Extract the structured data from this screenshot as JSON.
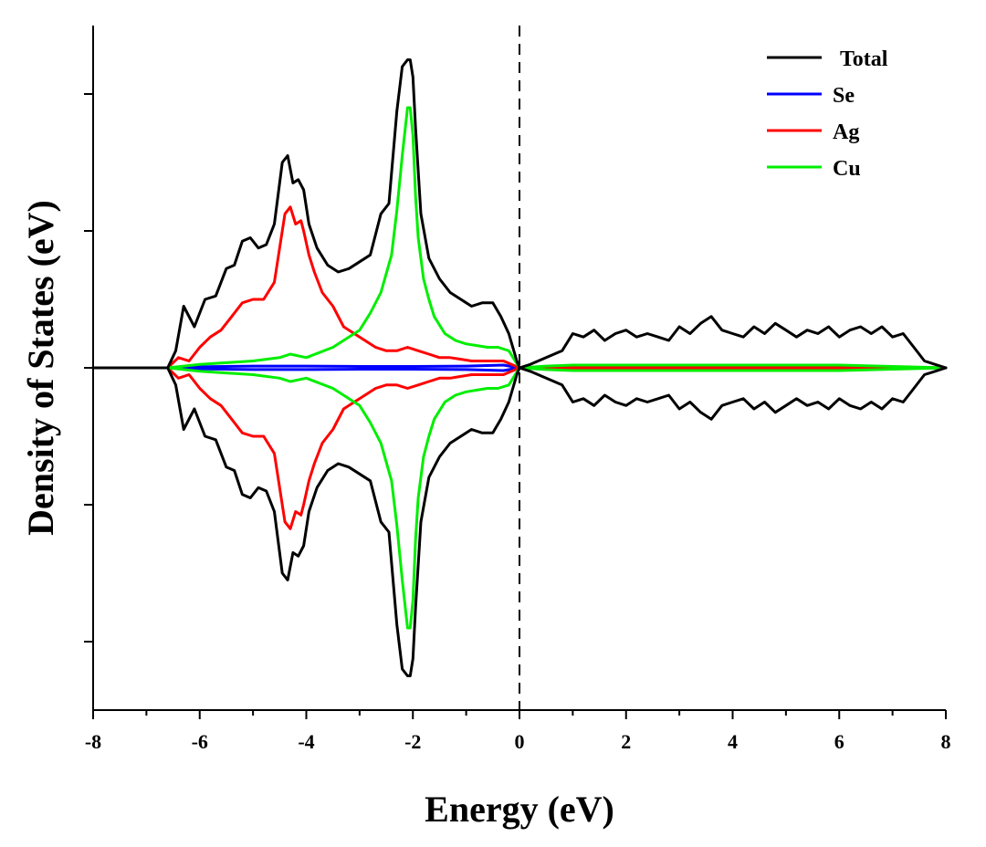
{
  "chart_data": {
    "type": "line",
    "title": "",
    "xlabel": "Energy (eV)",
    "ylabel": "Density of States (eV)",
    "xlim": [
      -8,
      8
    ],
    "ylim": [
      -1.0,
      1.0
    ],
    "x_ticks": [
      -8,
      -6,
      -4,
      -2,
      0,
      2,
      4,
      6,
      8
    ],
    "x_tick_labels": [
      "-8",
      "-6",
      "-4",
      "-2",
      "0",
      "2",
      "4",
      "6",
      "8"
    ],
    "y_ticks_major": [
      -0.8,
      -0.4,
      0.0,
      0.4,
      0.8
    ],
    "y_tick_labels_shown": false,
    "fermi_level": 0,
    "grid": false,
    "legend_position": "top-right",
    "series": [
      {
        "name": "Total",
        "color": "#000000",
        "spin_up": {
          "x": [
            -8,
            -6.6,
            -6.45,
            -6.3,
            -6.1,
            -5.9,
            -5.7,
            -5.5,
            -5.35,
            -5.2,
            -5.05,
            -4.9,
            -4.75,
            -4.6,
            -4.45,
            -4.35,
            -4.25,
            -4.15,
            -4.05,
            -3.95,
            -3.8,
            -3.6,
            -3.4,
            -3.2,
            -3.0,
            -2.8,
            -2.6,
            -2.45,
            -2.3,
            -2.2,
            -2.1,
            -2.05,
            -2.0,
            -1.95,
            -1.85,
            -1.7,
            -1.5,
            -1.3,
            -1.1,
            -0.9,
            -0.7,
            -0.5,
            -0.35,
            -0.2,
            -0.05,
            0.0,
            0.2,
            0.5,
            0.8,
            1.0,
            1.2,
            1.4,
            1.6,
            1.8,
            2.0,
            2.2,
            2.4,
            2.6,
            2.8,
            3.0,
            3.2,
            3.4,
            3.6,
            3.8,
            4.0,
            4.2,
            4.4,
            4.6,
            4.8,
            5.0,
            5.2,
            5.4,
            5.6,
            5.8,
            6.0,
            6.2,
            6.4,
            6.6,
            6.8,
            7.0,
            7.2,
            7.4,
            7.6,
            7.8,
            8.0
          ],
          "y": [
            0,
            0,
            0.05,
            0.18,
            0.12,
            0.2,
            0.21,
            0.29,
            0.3,
            0.37,
            0.38,
            0.35,
            0.36,
            0.42,
            0.6,
            0.62,
            0.54,
            0.55,
            0.52,
            0.42,
            0.35,
            0.3,
            0.28,
            0.29,
            0.31,
            0.33,
            0.45,
            0.48,
            0.75,
            0.88,
            0.9,
            0.9,
            0.85,
            0.7,
            0.45,
            0.32,
            0.26,
            0.22,
            0.2,
            0.18,
            0.19,
            0.19,
            0.15,
            0.1,
            0.02,
            0,
            0.01,
            0.03,
            0.05,
            0.1,
            0.09,
            0.11,
            0.08,
            0.1,
            0.11,
            0.09,
            0.1,
            0.09,
            0.08,
            0.12,
            0.1,
            0.13,
            0.15,
            0.11,
            0.1,
            0.09,
            0.12,
            0.1,
            0.13,
            0.11,
            0.09,
            0.11,
            0.1,
            0.12,
            0.09,
            0.11,
            0.12,
            0.1,
            0.12,
            0.09,
            0.1,
            0.06,
            0.02,
            0.01,
            0
          ],
          "note": "spin-down is the mirrored negative of spin-up"
        }
      },
      {
        "name": "Se",
        "color": "#0000ff",
        "spin_up": {
          "x": [
            -8,
            -6.6,
            -6.0,
            -5.0,
            -4.0,
            -3.0,
            -2.0,
            -1.0,
            -0.3,
            0.0,
            2.0,
            4.0,
            6.0,
            8.0
          ],
          "y": [
            0,
            0,
            0.003,
            0.005,
            0.005,
            0.004,
            0.004,
            0.005,
            0.008,
            0,
            0.002,
            0.002,
            0.002,
            0
          ]
        }
      },
      {
        "name": "Ag",
        "color": "#ff0000",
        "spin_up": {
          "x": [
            -8,
            -6.6,
            -6.4,
            -6.2,
            -6.0,
            -5.8,
            -5.6,
            -5.4,
            -5.2,
            -5.0,
            -4.8,
            -4.6,
            -4.5,
            -4.4,
            -4.3,
            -4.2,
            -4.1,
            -4.05,
            -3.95,
            -3.85,
            -3.7,
            -3.5,
            -3.3,
            -3.1,
            -2.9,
            -2.7,
            -2.5,
            -2.3,
            -2.1,
            -1.9,
            -1.7,
            -1.5,
            -1.3,
            -1.1,
            -0.9,
            -0.7,
            -0.5,
            -0.3,
            -0.15,
            0.0,
            0.5,
            1.0,
            2.0,
            4.0,
            6.0,
            7.5,
            8.0
          ],
          "y": [
            0,
            0,
            0.03,
            0.02,
            0.06,
            0.09,
            0.11,
            0.15,
            0.19,
            0.2,
            0.2,
            0.25,
            0.35,
            0.45,
            0.47,
            0.42,
            0.43,
            0.4,
            0.33,
            0.28,
            0.22,
            0.18,
            0.12,
            0.1,
            0.08,
            0.06,
            0.05,
            0.05,
            0.06,
            0.05,
            0.04,
            0.03,
            0.03,
            0.025,
            0.02,
            0.02,
            0.02,
            0.02,
            0.01,
            0,
            0.003,
            0.003,
            0.002,
            0.002,
            0.002,
            0.001,
            0
          ]
        }
      },
      {
        "name": "Cu",
        "color": "#00ee00",
        "spin_up": {
          "x": [
            -8,
            -6.6,
            -6.0,
            -5.0,
            -4.5,
            -4.3,
            -4.0,
            -3.5,
            -3.0,
            -2.8,
            -2.6,
            -2.4,
            -2.3,
            -2.2,
            -2.1,
            -2.05,
            -2.0,
            -1.95,
            -1.9,
            -1.8,
            -1.7,
            -1.6,
            -1.4,
            -1.2,
            -1.0,
            -0.8,
            -0.6,
            -0.4,
            -0.2,
            0.0,
            0.5,
            1.0,
            2.0,
            4.0,
            6.0,
            8.0
          ],
          "y": [
            0,
            0,
            0.01,
            0.02,
            0.03,
            0.04,
            0.03,
            0.06,
            0.11,
            0.16,
            0.22,
            0.33,
            0.46,
            0.62,
            0.76,
            0.76,
            0.68,
            0.5,
            0.38,
            0.26,
            0.2,
            0.15,
            0.1,
            0.08,
            0.07,
            0.065,
            0.06,
            0.06,
            0.05,
            0,
            0.005,
            0.008,
            0.008,
            0.008,
            0.008,
            0
          ]
        }
      }
    ]
  }
}
